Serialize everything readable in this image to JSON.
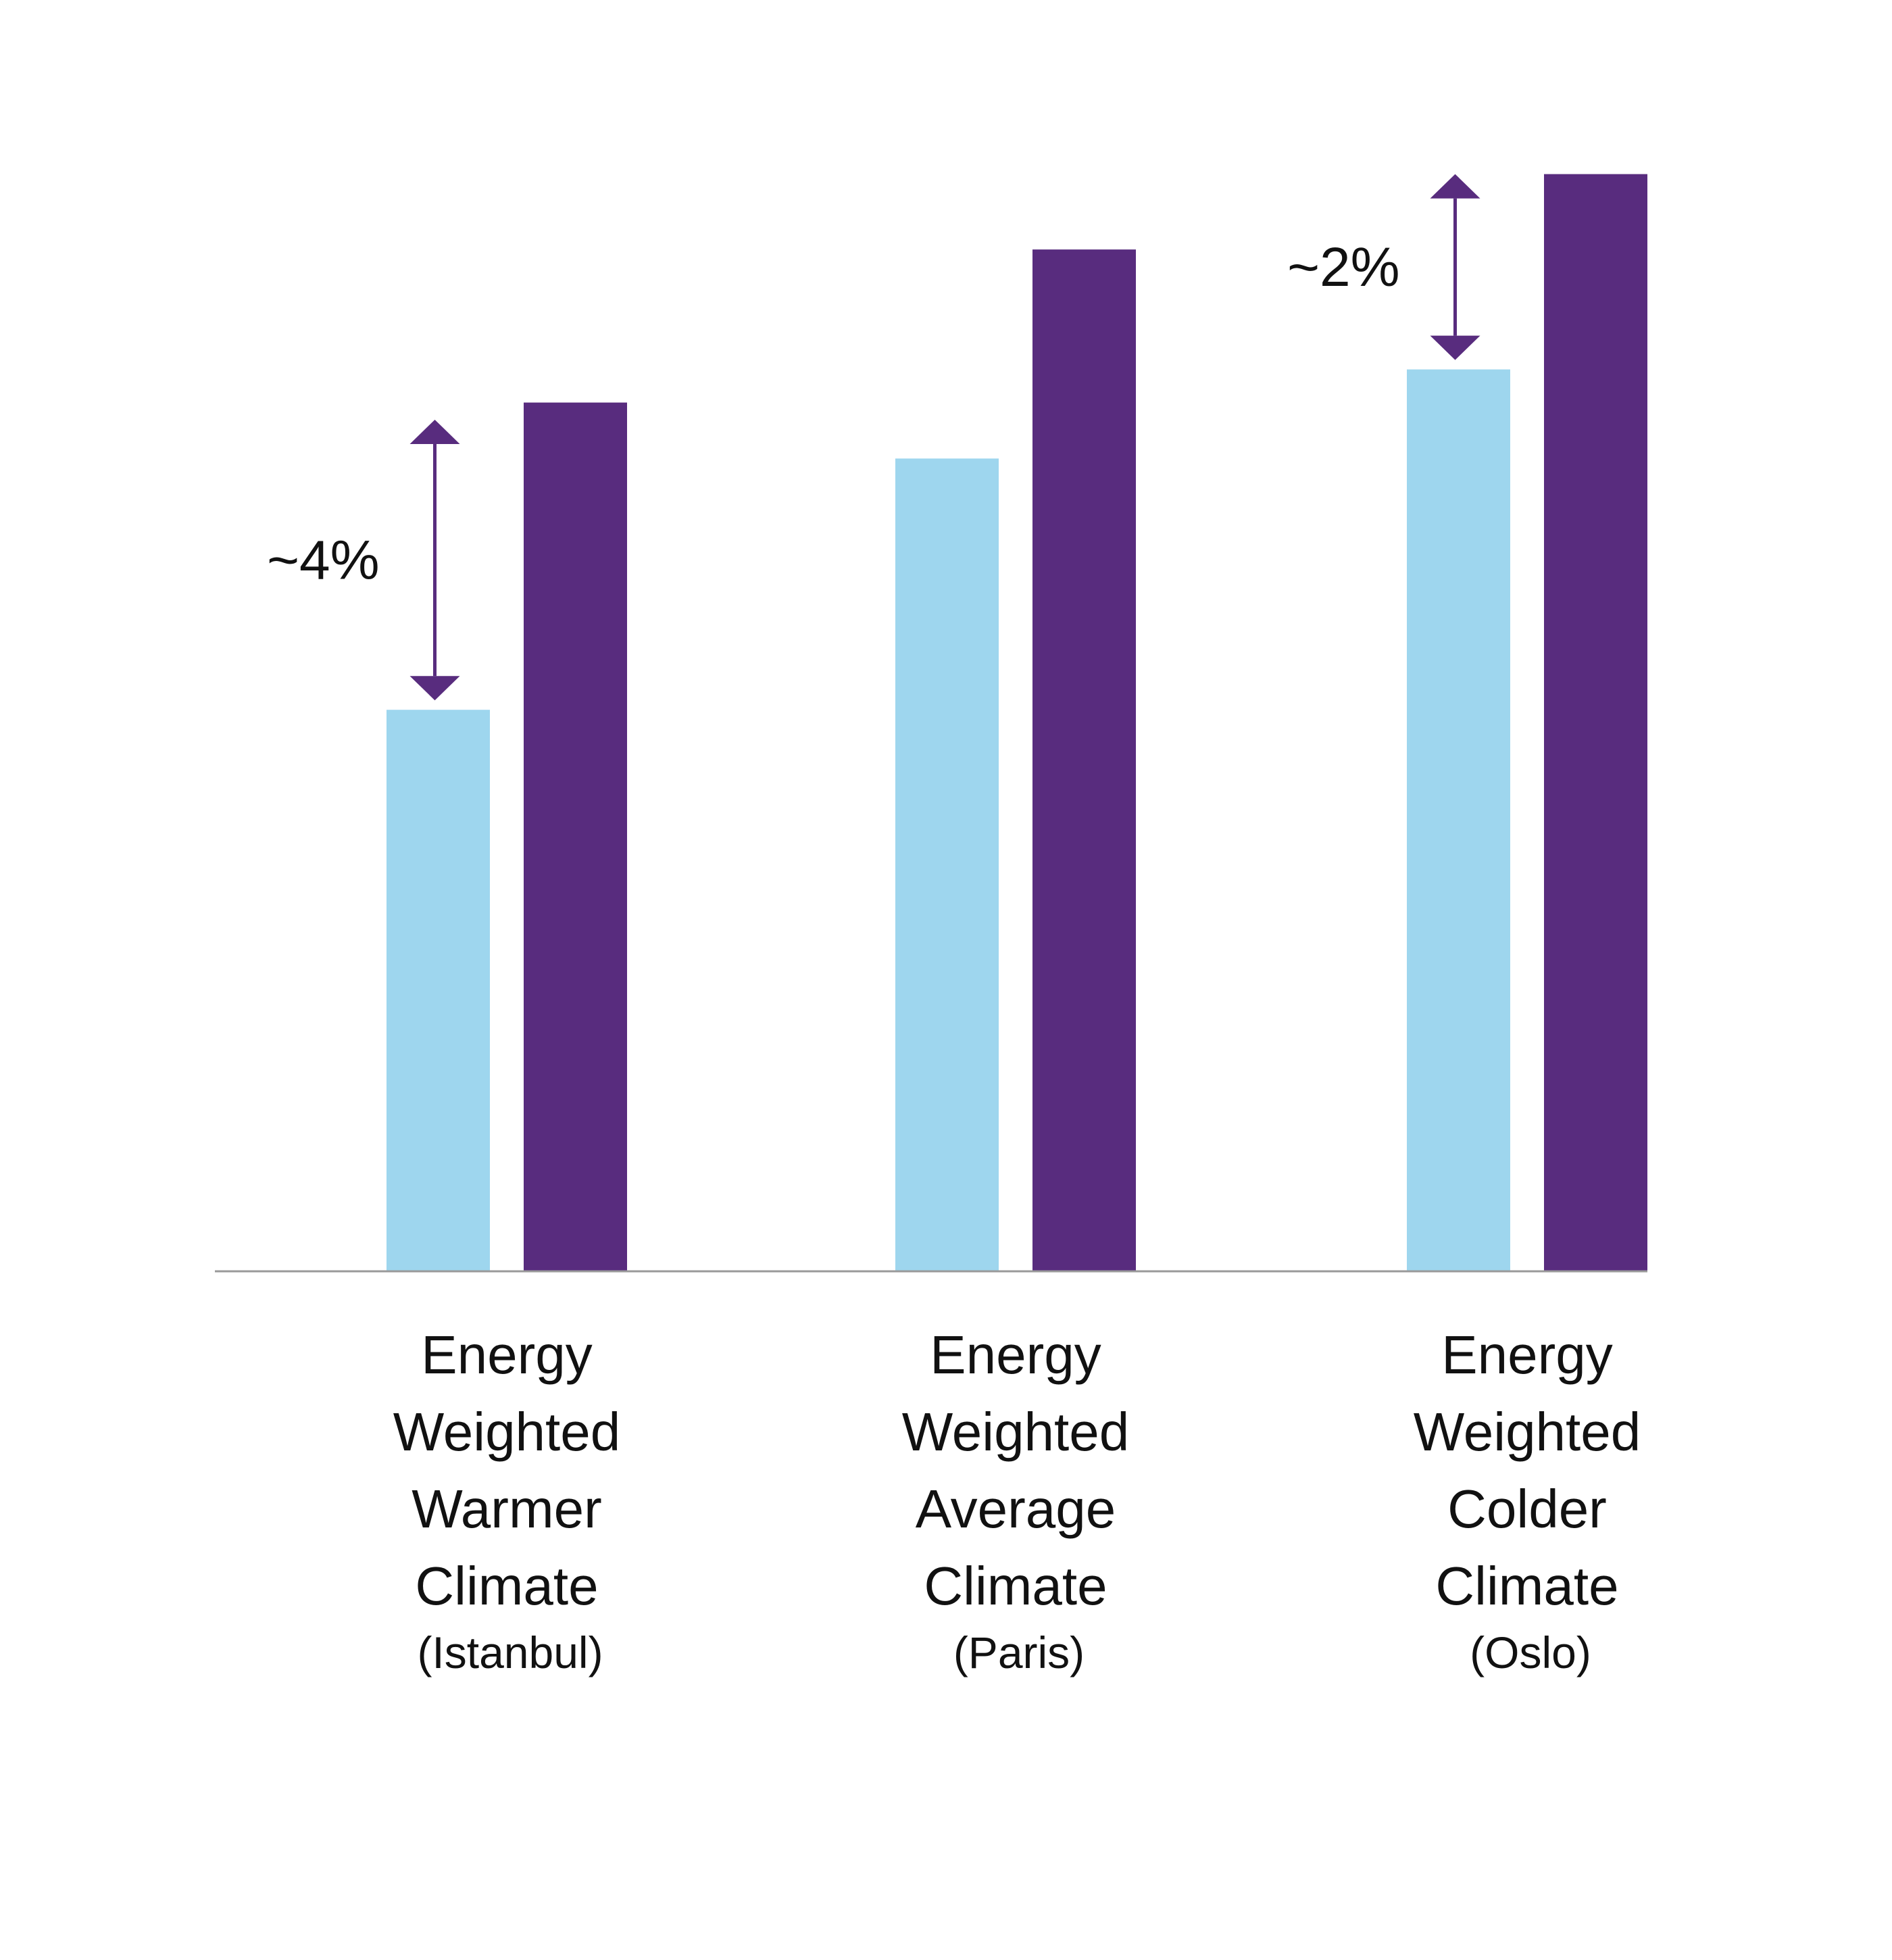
{
  "chart_data": {
    "type": "bar",
    "categories": [
      {
        "lines": [
          "Energy",
          "Weighted",
          "Warmer",
          "Climate"
        ],
        "sub": "(Istanbul)"
      },
      {
        "lines": [
          "Energy",
          "Weighted",
          "Average",
          "Climate"
        ],
        "sub": "(Paris)"
      },
      {
        "lines": [
          "Energy",
          "Weighted",
          "Colder",
          "Climate"
        ],
        "sub": "(Oslo)"
      }
    ],
    "series": [
      {
        "color": "#9ED6EE",
        "values": [
          49.1,
          71.1,
          78.9
        ]
      },
      {
        "color": "#582C7E",
        "values": [
          76.0,
          89.4,
          96.0
        ]
      }
    ],
    "ylim": [
      0,
      100
    ],
    "grid": false,
    "legend": "none",
    "annotations": [
      {
        "category_index": 0,
        "text": "~4%",
        "from_value": 49.1,
        "to_value": 74.5,
        "label_side": "left"
      },
      {
        "category_index": 2,
        "text": "~2%",
        "from_value": 78.9,
        "to_value": 96.0,
        "label_side": "left"
      }
    ],
    "colors": {
      "axis": "#9a9a9a",
      "arrow": "#582C7E",
      "text": "#111111"
    }
  }
}
